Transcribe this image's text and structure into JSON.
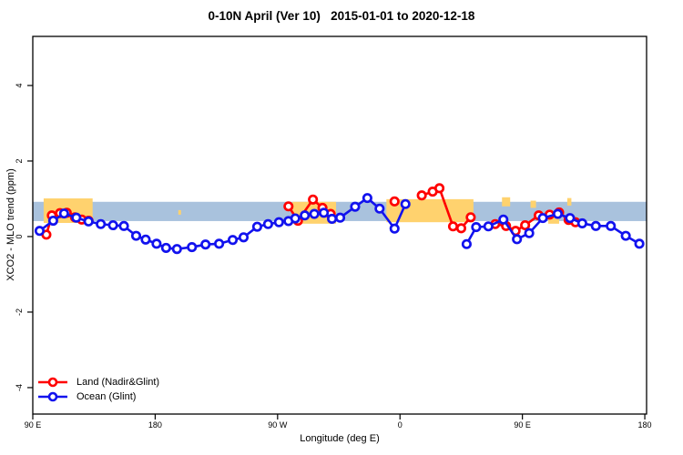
{
  "window": {
    "background": "#ffffff"
  },
  "chart_data": {
    "type": "line",
    "title": "0-10N April (Ver 10)   2015-01-01 to 2020-12-18",
    "xlabel": "Longitude (deg E)",
    "ylabel": "XCO2 - MLO trend (ppm)",
    "grid": false,
    "frame_color": "#000000",
    "xlim": [
      90,
      541.3
    ],
    "ylim": [
      -4.7,
      5.3
    ],
    "x_ticks": [
      {
        "lon": 90,
        "label": "90 E"
      },
      {
        "lon": 180,
        "label": "180"
      },
      {
        "lon": 270,
        "label": "90 W"
      },
      {
        "lon": 360,
        "label": "0"
      },
      {
        "lon": 450,
        "label": "90 E"
      },
      {
        "lon": 540,
        "label": "180"
      }
    ],
    "y_ticks": [
      {
        "value": -4,
        "label": "-4"
      },
      {
        "value": -2,
        "label": "-2"
      },
      {
        "value": 0,
        "label": "0"
      },
      {
        "value": 2,
        "label": "2"
      },
      {
        "value": 4,
        "label": "4"
      }
    ],
    "bands": {
      "blue_band": {
        "color": "#a9c2dd",
        "lon0": 90,
        "lon1": 541.3,
        "vtop": 0.92,
        "vbot": 0.41
      },
      "orange_band": {
        "color": "#ffd26e",
        "segments": [
          {
            "lon0": 98,
            "lon1": 134,
            "vtop": 1.01,
            "vbot": 0.36
          },
          {
            "lon0": 197,
            "lon1": 199,
            "vtop": 0.7,
            "vbot": 0.58
          },
          {
            "lon0": 281,
            "lon1": 313,
            "vtop": 0.92,
            "vbot": 0.34
          },
          {
            "lon0": 350,
            "lon1": 414,
            "vtop": 0.99,
            "vbot": 0.38
          },
          {
            "lon0": 435,
            "lon1": 441,
            "vtop": 1.04,
            "vbot": 0.8
          },
          {
            "lon0": 456,
            "lon1": 460,
            "vtop": 0.95,
            "vbot": 0.76
          },
          {
            "lon0": 469,
            "lon1": 477,
            "vtop": 0.55,
            "vbot": 0.34
          },
          {
            "lon0": 483,
            "lon1": 486,
            "vtop": 1.02,
            "vbot": 0.82
          }
        ]
      }
    },
    "series": [
      {
        "name": "Land (Nadir&Glint)",
        "color": "#ff0000",
        "marker": "open-circle",
        "segments": [
          [
            [
              100,
              0.05
            ],
            [
              104,
              0.56
            ],
            [
              110,
              0.62
            ],
            [
              115,
              0.63
            ],
            [
              121,
              0.51
            ],
            [
              126,
              0.45
            ],
            [
              131,
              0.42
            ]
          ],
          [
            [
              278,
              0.8
            ],
            [
              285,
              0.42
            ],
            [
              296,
              0.98
            ],
            [
              303,
              0.76
            ],
            [
              309,
              0.6
            ]
          ],
          [
            [
              356,
              0.93
            ]
          ],
          [
            [
              376,
              1.09
            ],
            [
              384,
              1.19
            ],
            [
              389,
              1.28
            ],
            [
              399,
              0.27
            ],
            [
              405,
              0.22
            ],
            [
              412,
              0.51
            ]
          ],
          [
            [
              430,
              0.33
            ],
            [
              438,
              0.28
            ],
            [
              445,
              0.15
            ],
            [
              452,
              0.3
            ],
            [
              462,
              0.56
            ],
            [
              470,
              0.58
            ],
            [
              477,
              0.64
            ],
            [
              484,
              0.44
            ],
            [
              489,
              0.38
            ]
          ]
        ]
      },
      {
        "name": "Ocean (Glint)",
        "color": "#1212ee",
        "marker": "open-circle",
        "segments": [
          [
            [
              95,
              0.15
            ],
            [
              105,
              0.42
            ],
            [
              113,
              0.61
            ],
            [
              122,
              0.5
            ],
            [
              131,
              0.4
            ],
            [
              140,
              0.33
            ],
            [
              149,
              0.3
            ],
            [
              157,
              0.28
            ],
            [
              166,
              0.02
            ],
            [
              173,
              -0.08
            ],
            [
              181,
              -0.19
            ],
            [
              188,
              -0.3
            ],
            [
              196,
              -0.33
            ],
            [
              207,
              -0.28
            ],
            [
              217,
              -0.21
            ],
            [
              227,
              -0.19
            ],
            [
              237,
              -0.09
            ],
            [
              245,
              -0.02
            ],
            [
              255,
              0.26
            ],
            [
              263,
              0.33
            ],
            [
              271,
              0.38
            ],
            [
              278,
              0.41
            ],
            [
              283,
              0.48
            ],
            [
              290,
              0.56
            ],
            [
              297,
              0.6
            ],
            [
              304,
              0.63
            ],
            [
              310,
              0.47
            ],
            [
              316,
              0.5
            ],
            [
              327,
              0.79
            ],
            [
              336,
              1.02
            ],
            [
              345,
              0.74
            ],
            [
              356,
              0.21
            ],
            [
              364,
              0.86
            ]
          ],
          [
            [
              409,
              -0.2
            ],
            [
              416,
              0.25
            ],
            [
              425,
              0.27
            ],
            [
              436,
              0.45
            ],
            [
              446,
              -0.07
            ],
            [
              455,
              0.09
            ],
            [
              465,
              0.49
            ],
            [
              476,
              0.6
            ],
            [
              485,
              0.49
            ],
            [
              494,
              0.35
            ],
            [
              504,
              0.28
            ],
            [
              515,
              0.28
            ],
            [
              526,
              0.02
            ],
            [
              536,
              -0.19
            ]
          ]
        ]
      }
    ],
    "legend": {
      "position": "bottom-left",
      "items": [
        {
          "label": "Land (Nadir&Glint)",
          "color": "#ff0000"
        },
        {
          "label": "Ocean (Glint)",
          "color": "#1212ee"
        }
      ]
    }
  }
}
